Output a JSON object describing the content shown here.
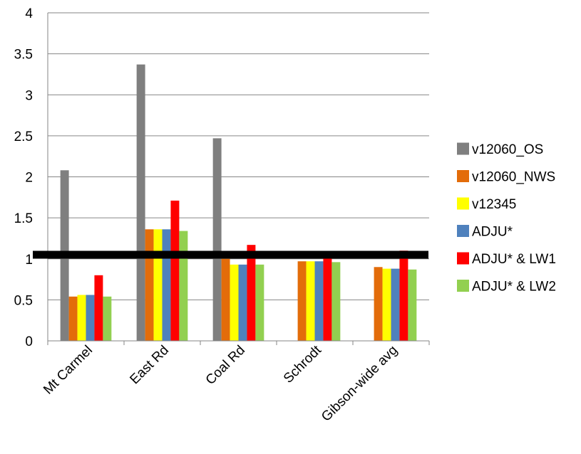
{
  "chart_data": {
    "type": "bar",
    "title": "",
    "xlabel": "",
    "ylabel": "",
    "categories": [
      "Mt Carmel",
      "East Rd",
      "Coal Rd",
      "Schrodt",
      "Gibson-wide avg"
    ],
    "ylim": [
      0,
      4
    ],
    "yticks": [
      0,
      0.5,
      1,
      1.5,
      2,
      2.5,
      3,
      3.5,
      4
    ],
    "ytick_labels": [
      "0",
      "0.5",
      "1",
      "1.5",
      "2",
      "2.5",
      "3",
      "3.5",
      "4"
    ],
    "grid": true,
    "legend_position": "right",
    "reference_line": {
      "value": 1.05,
      "color": "#000000"
    },
    "series": [
      {
        "name": "v12060_OS",
        "color": "#7f7f7f",
        "values": [
          2.08,
          3.37,
          2.47,
          0,
          0
        ]
      },
      {
        "name": "v12060_NWS",
        "color": "#e36c0a",
        "values": [
          0.54,
          1.36,
          1.0,
          0.97,
          0.9
        ]
      },
      {
        "name": "v12345",
        "color": "#ffff00",
        "values": [
          0.56,
          1.36,
          0.93,
          0.97,
          0.88
        ]
      },
      {
        "name": "ADJU*",
        "color": "#4f81bd",
        "values": [
          0.56,
          1.36,
          0.93,
          0.97,
          0.88
        ]
      },
      {
        "name": "ADJU* & LW1",
        "color": "#ff0000",
        "values": [
          0.8,
          1.71,
          1.17,
          1.02,
          1.1
        ]
      },
      {
        "name": "ADJU* & LW2",
        "color": "#92d050",
        "values": [
          0.54,
          1.34,
          0.93,
          0.96,
          0.87
        ]
      }
    ]
  }
}
